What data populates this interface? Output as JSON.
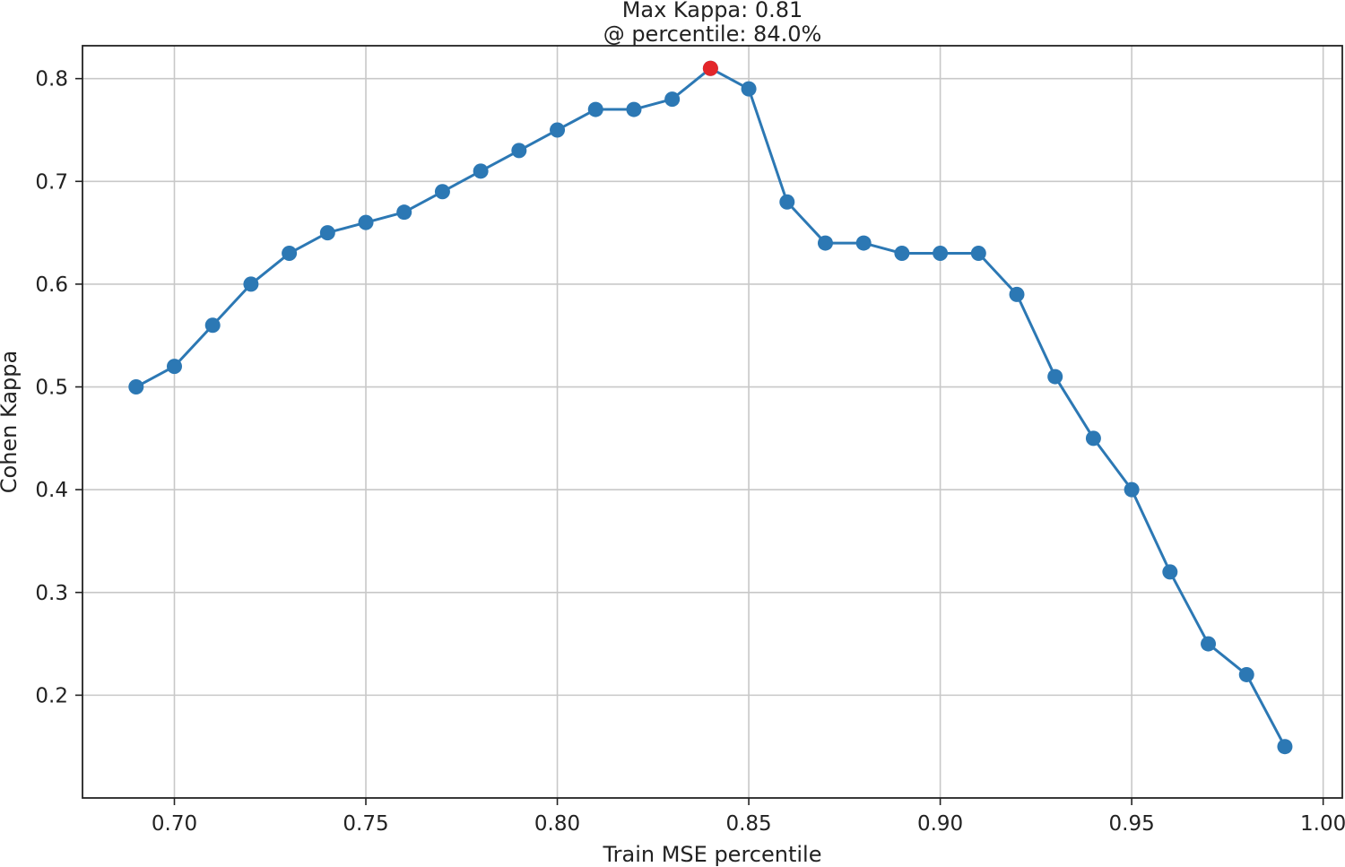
{
  "chart_data": {
    "type": "line",
    "title": "Max Kappa: 0.81",
    "subtitle": "@ percentile: 84.0%",
    "xlabel": "Train MSE percentile",
    "ylabel": "Cohen Kappa",
    "xlim": [
      0.676,
      1.005
    ],
    "ylim": [
      0.1,
      0.832
    ],
    "grid": true,
    "x_ticks": [
      0.7,
      0.75,
      0.8,
      0.85,
      0.9,
      0.95,
      1.0
    ],
    "x_tick_labels": [
      "0.70",
      "0.75",
      "0.80",
      "0.85",
      "0.90",
      "0.95",
      "1.00"
    ],
    "y_ticks": [
      0.2,
      0.3,
      0.4,
      0.5,
      0.6,
      0.7,
      0.8
    ],
    "y_tick_labels": [
      "0.2",
      "0.3",
      "0.4",
      "0.5",
      "0.6",
      "0.7",
      "0.8"
    ],
    "series": [
      {
        "color": "#2c78b4",
        "x": [
          0.69,
          0.7,
          0.71,
          0.72,
          0.73,
          0.74,
          0.75,
          0.76,
          0.77,
          0.78,
          0.79,
          0.8,
          0.81,
          0.82,
          0.83,
          0.84,
          0.85,
          0.86,
          0.87,
          0.88,
          0.89,
          0.9,
          0.91,
          0.92,
          0.93,
          0.94,
          0.95,
          0.96,
          0.97,
          0.98,
          0.99
        ],
        "values": [
          0.5,
          0.52,
          0.56,
          0.6,
          0.63,
          0.65,
          0.66,
          0.67,
          0.69,
          0.71,
          0.73,
          0.75,
          0.77,
          0.77,
          0.78,
          0.81,
          0.79,
          0.68,
          0.64,
          0.64,
          0.63,
          0.63,
          0.63,
          0.59,
          0.51,
          0.45,
          0.4,
          0.32,
          0.25,
          0.22,
          0.15
        ]
      }
    ],
    "highlight_point": {
      "x": 0.84,
      "y": 0.81,
      "color": "#e3262a"
    }
  }
}
